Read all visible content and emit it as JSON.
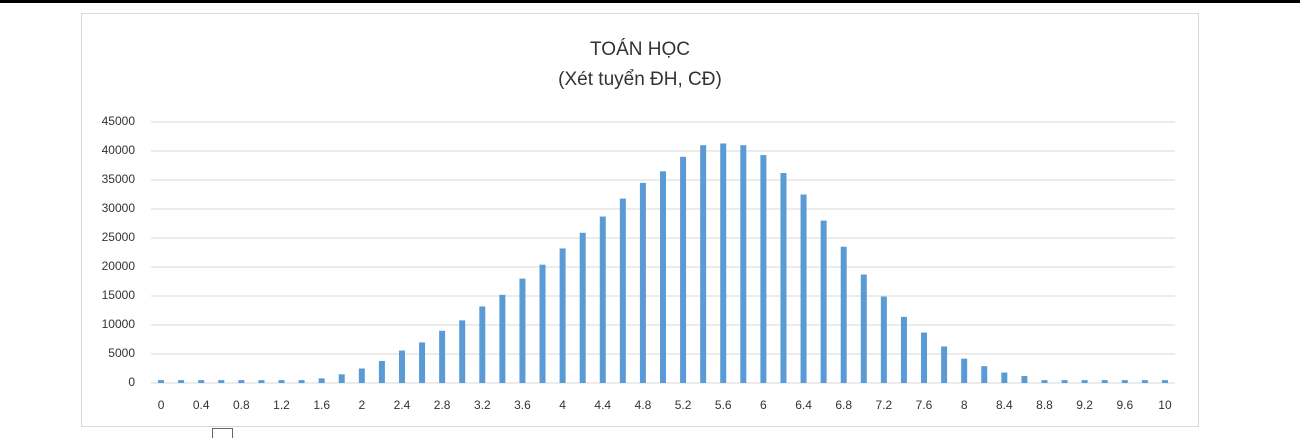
{
  "chart_data": {
    "type": "bar",
    "title": "TOÁN HỌC",
    "subtitle": "(Xét tuyển ĐH, CĐ)",
    "categories": [
      "0",
      null,
      "0.4",
      null,
      "0.8",
      null,
      "1.2",
      null,
      "1.6",
      null,
      "2",
      null,
      "2.4",
      null,
      "2.8",
      null,
      "3.2",
      null,
      "3.6",
      null,
      "4",
      null,
      "4.4",
      null,
      "4.8",
      null,
      "5.2",
      null,
      "5.6",
      null,
      "6",
      null,
      "6.4",
      null,
      "6.8",
      null,
      "7.2",
      null,
      "7.6",
      null,
      "8",
      null,
      "8.4",
      null,
      "8.8",
      null,
      "9.2",
      null,
      "9.6",
      null,
      "10"
    ],
    "values": [
      500,
      500,
      500,
      500,
      500,
      500,
      500,
      500,
      800,
      1500,
      2500,
      3800,
      5600,
      7000,
      9000,
      10800,
      13200,
      15200,
      18000,
      20400,
      23200,
      25900,
      28700,
      31800,
      34500,
      36500,
      39000,
      41000,
      41300,
      41000,
      39300,
      36200,
      32500,
      28000,
      23500,
      18700,
      14900,
      11400,
      8700,
      6300,
      4200,
      2900,
      1800,
      1200,
      500,
      500,
      500,
      500,
      500,
      500,
      500
    ],
    "color": "#5b9bd5",
    "ylim": [
      0,
      45000
    ],
    "yticks": [
      0,
      5000,
      10000,
      15000,
      20000,
      25000,
      30000,
      35000,
      40000,
      45000
    ],
    "grid": true
  }
}
